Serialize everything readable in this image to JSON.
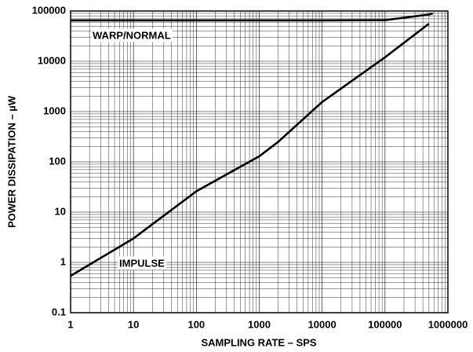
{
  "chart_data": {
    "type": "line",
    "xlabel": "SAMPLING RATE – SPS",
    "ylabel": "POWER DISSIPATION – µW",
    "x": [
      1,
      10,
      100,
      1000,
      2000,
      10000,
      100000,
      500000,
      575000
    ],
    "series": [
      {
        "name": "WARP/NORMAL",
        "color": "#000000",
        "values": [
          65000,
          65000,
          65000,
          65000,
          65000,
          65000,
          66000,
          85000,
          90000
        ]
      },
      {
        "name": "IMPULSE",
        "color": "#000000",
        "values": [
          0.54,
          3,
          26,
          129,
          250,
          1550,
          12000,
          56000,
          null
        ]
      }
    ],
    "xlim": [
      1,
      1000000
    ],
    "xticks": [
      1,
      10,
      100,
      1000,
      10000,
      100000,
      1000000
    ],
    "ylim": [
      0.1,
      100000
    ],
    "yticks": [
      0.1,
      1,
      10,
      100,
      1000,
      10000,
      100000
    ],
    "log_x": true,
    "log_y": true,
    "grid": true,
    "minor_grid": true,
    "legend": false
  }
}
